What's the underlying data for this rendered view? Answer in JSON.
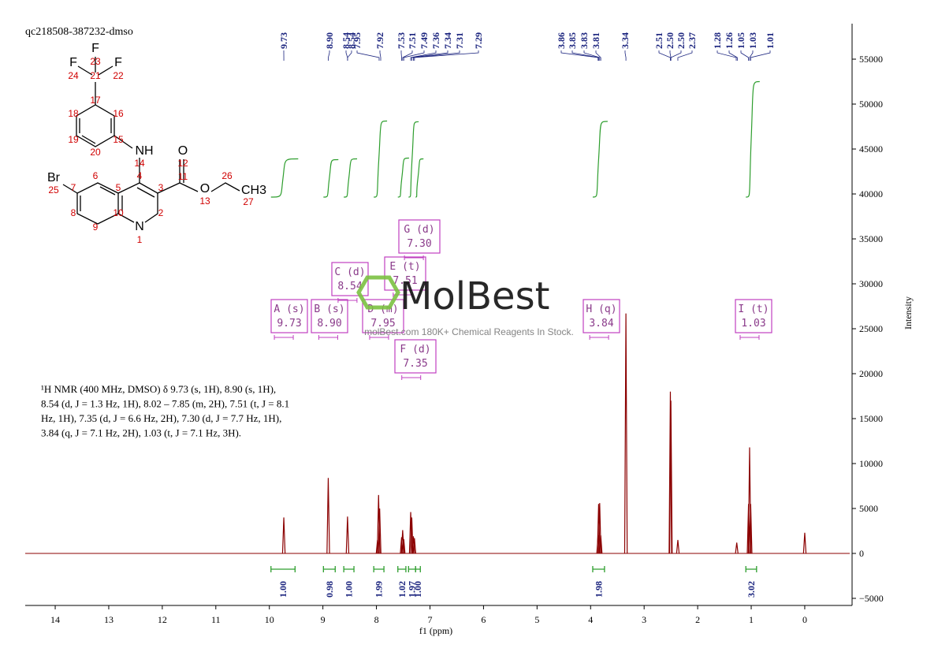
{
  "sample_id": "qc218508-387232-dmso",
  "structure": {
    "labels": [
      "F",
      "23",
      "F",
      "24",
      "21",
      "F",
      "22",
      "17",
      "18",
      "16",
      "19",
      "15",
      "20",
      "NH",
      "14",
      "O",
      "12",
      "11",
      "Br",
      "25",
      "6",
      "7",
      "5",
      "4",
      "3",
      "O",
      "13",
      "26",
      "CH3",
      "27",
      "8",
      "10",
      "2",
      "9",
      "N",
      "1"
    ]
  },
  "description": [
    "¹H NMR (400 MHz, DMSO) δ 9.73 (s, 1H), 8.90 (s, 1H),",
    "8.54 (d, J = 1.3 Hz, 1H), 8.02 – 7.85 (m, 2H), 7.51 (t, J = 8.1",
    "Hz, 1H), 7.35 (d, J = 6.6 Hz, 2H), 7.30 (d, J = 7.7 Hz, 1H),",
    "3.84 (q, J = 7.1 Hz, 2H), 1.03 (t, J = 7.1 Hz, 3H)."
  ],
  "watermark": {
    "brand": "MolBest",
    "tagline": "molBest.com 180K+ Chemical Reagents In Stock."
  },
  "chart_data": {
    "type": "nmr",
    "xlabel": "f1 (ppm)",
    "ylabel": "Intensity",
    "xlim": [
      14.56,
      -0.84
    ],
    "ylim": [
      -5790,
      58950
    ],
    "xticks": [
      14,
      13,
      12,
      11,
      10,
      9,
      8,
      7,
      6,
      5,
      4,
      3,
      2,
      1,
      0
    ],
    "yticks": [
      {
        "value": -5000,
        "label": "−5000"
      },
      0,
      5000,
      10000,
      15000,
      20000,
      25000,
      30000,
      35000,
      40000,
      45000,
      50000,
      55000
    ],
    "line_color": "#8b0000",
    "integral_color": "#2e9e2e",
    "label_color": "#1a237e",
    "box_color": "#c040c0",
    "peaks": {
      "x": [
        9.73,
        8.9,
        8.54,
        7.98,
        7.96,
        7.94,
        7.53,
        7.51,
        7.49,
        7.36,
        7.34,
        7.31,
        7.29,
        3.86,
        3.85,
        3.83,
        3.81,
        3.34,
        2.51,
        2.5,
        2.37,
        1.27,
        1.05,
        1.03,
        1.01,
        0.0
      ],
      "values": [
        4000,
        8400,
        4100,
        1500,
        6500,
        5000,
        1800,
        2600,
        1600,
        4600,
        4000,
        1900,
        1700,
        2000,
        5500,
        5600,
        2000,
        26700,
        18000,
        17000,
        1500,
        1200,
        5500,
        11800,
        5500,
        2300
      ]
    },
    "peak_labels": [
      9.73,
      {
        "value": 8.9,
        "label": "8.90"
      },
      8.54,
      8.54,
      7.95,
      7.92,
      7.53,
      7.51,
      7.49,
      7.36,
      7.34,
      7.31,
      7.29,
      3.86,
      3.85,
      3.83,
      3.81,
      3.34,
      2.51,
      {
        "value": 2.5,
        "label": "2.50"
      },
      {
        "value": 2.5,
        "label": "2.50"
      },
      2.37,
      1.28,
      1.26,
      1.05,
      1.03,
      1.01
    ],
    "integrations": [
      {
        "from": 9.97,
        "to": 9.52,
        "value": {
          "value": 1,
          "label": "1.00"
        }
      },
      {
        "from": 8.99,
        "to": 8.77,
        "value": 0.98
      },
      {
        "from": 8.61,
        "to": 8.42,
        "value": {
          "value": 1,
          "label": "1.00"
        }
      },
      {
        "from": 8.05,
        "to": 7.86,
        "value": 1.99
      },
      {
        "from": 7.6,
        "to": 7.45,
        "value": 1.02
      },
      {
        "from": 7.4,
        "to": 7.27,
        "value": 1.97
      },
      {
        "from": 7.27,
        "to": 7.18,
        "value": {
          "value": 1,
          "label": "1.00"
        }
      },
      {
        "from": 3.96,
        "to": 3.74,
        "value": 1.98
      },
      {
        "from": 1.1,
        "to": 0.9,
        "value": 3.02
      }
    ],
    "multiplets": [
      {
        "label": "A (s)",
        "shift": 9.73
      },
      {
        "label": "B (s)",
        "shift": {
          "value": 8.9,
          "label": "8.90"
        }
      },
      {
        "label": "C (d)",
        "shift": 8.54
      },
      {
        "label": "D (m)",
        "shift": 7.95
      },
      {
        "label": "E (t)",
        "shift": 7.51
      },
      {
        "label": "F (d)",
        "shift": 7.35
      },
      {
        "label": "G (d)",
        "shift": {
          "value": 7.3,
          "label": "7.30"
        }
      },
      {
        "label": "H (q)",
        "shift": 3.84
      },
      {
        "label": "I (t)",
        "shift": 1.03
      }
    ]
  }
}
